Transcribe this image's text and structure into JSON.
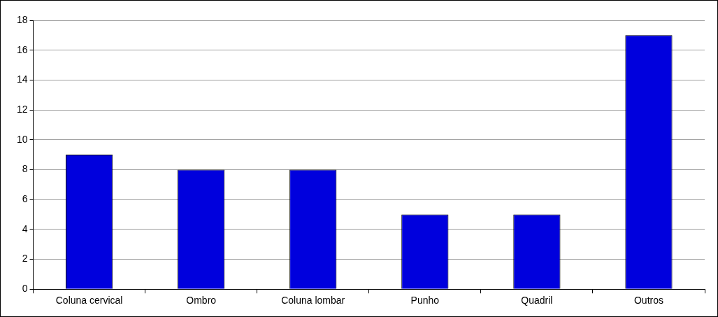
{
  "chart_data": {
    "type": "bar",
    "categories": [
      "Coluna cervical",
      "Ombro",
      "Coluna lombar",
      "Punho",
      "Quadril",
      "Outros"
    ],
    "values": [
      9,
      8,
      8,
      5,
      5,
      17
    ],
    "color": "#0000dd",
    "ylim": [
      0,
      18
    ],
    "yticks": [
      0,
      2,
      4,
      6,
      8,
      10,
      12,
      14,
      16,
      18
    ],
    "grid": "y",
    "legend": false
  }
}
